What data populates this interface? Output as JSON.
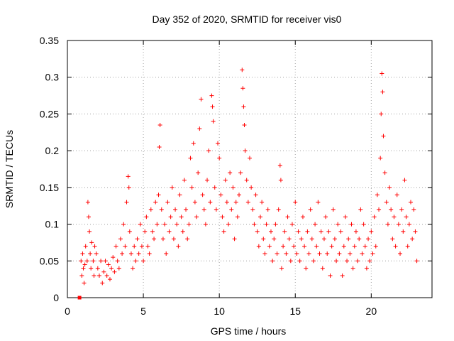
{
  "chart_data": {
    "type": "scatter",
    "title": "Day 352 of 2020, SRMTID for receiver vis0",
    "xlabel": "GPS time / hours",
    "ylabel": "SRMTID / TECUs",
    "xlim": [
      0,
      24
    ],
    "ylim": [
      0,
      0.35
    ],
    "xticks": [
      0,
      5,
      10,
      15,
      20
    ],
    "yticks": [
      0,
      0.05,
      0.1,
      0.15,
      0.2,
      0.25,
      0.3,
      0.35
    ],
    "ytick_labels": [
      "0",
      "0.05",
      "0.1",
      "0.15",
      "0.2",
      "0.25",
      "0.3",
      "0.35"
    ],
    "grid": true,
    "marker": "plus",
    "color": "#ff0000",
    "extra_marker": {
      "x": 0.8,
      "y": 0.0,
      "shape": "square"
    },
    "series": [
      {
        "name": "SRMTID",
        "points": [
          [
            0.9,
            0.05
          ],
          [
            0.95,
            0.03
          ],
          [
            1.0,
            0.06
          ],
          [
            1.05,
            0.04
          ],
          [
            1.1,
            0.02
          ],
          [
            1.15,
            0.045
          ],
          [
            1.2,
            0.07
          ],
          [
            1.3,
            0.05
          ],
          [
            1.35,
            0.13
          ],
          [
            1.4,
            0.11
          ],
          [
            1.45,
            0.09
          ],
          [
            1.5,
            0.06
          ],
          [
            1.55,
            0.04
          ],
          [
            1.6,
            0.075
          ],
          [
            1.7,
            0.05
          ],
          [
            1.75,
            0.03
          ],
          [
            1.8,
            0.07
          ],
          [
            1.9,
            0.06
          ],
          [
            2.0,
            0.04
          ],
          [
            2.1,
            0.03
          ],
          [
            2.2,
            0.05
          ],
          [
            2.3,
            0.02
          ],
          [
            2.4,
            0.035
          ],
          [
            2.5,
            0.05
          ],
          [
            2.6,
            0.03
          ],
          [
            2.7,
            0.045
          ],
          [
            2.8,
            0.025
          ],
          [
            2.9,
            0.04
          ],
          [
            3.0,
            0.055
          ],
          [
            3.1,
            0.035
          ],
          [
            3.2,
            0.07
          ],
          [
            3.3,
            0.05
          ],
          [
            3.4,
            0.04
          ],
          [
            3.5,
            0.08
          ],
          [
            3.6,
            0.06
          ],
          [
            3.7,
            0.1
          ],
          [
            3.8,
            0.07
          ],
          [
            3.9,
            0.13
          ],
          [
            4.0,
            0.165
          ],
          [
            4.05,
            0.15
          ],
          [
            4.1,
            0.09
          ],
          [
            4.2,
            0.06
          ],
          [
            4.3,
            0.04
          ],
          [
            4.4,
            0.07
          ],
          [
            4.5,
            0.05
          ],
          [
            4.6,
            0.08
          ],
          [
            4.7,
            0.06
          ],
          [
            4.8,
            0.1
          ],
          [
            4.9,
            0.07
          ],
          [
            5.0,
            0.05
          ],
          [
            5.1,
            0.09
          ],
          [
            5.2,
            0.11
          ],
          [
            5.3,
            0.07
          ],
          [
            5.4,
            0.06
          ],
          [
            5.5,
            0.12
          ],
          [
            5.6,
            0.09
          ],
          [
            5.7,
            0.08
          ],
          [
            5.8,
            0.13
          ],
          [
            5.9,
            0.1
          ],
          [
            6.0,
            0.14
          ],
          [
            6.05,
            0.205
          ],
          [
            6.1,
            0.235
          ],
          [
            6.2,
            0.12
          ],
          [
            6.3,
            0.08
          ],
          [
            6.4,
            0.1
          ],
          [
            6.5,
            0.06
          ],
          [
            6.6,
            0.13
          ],
          [
            6.7,
            0.09
          ],
          [
            6.8,
            0.11
          ],
          [
            6.9,
            0.15
          ],
          [
            7.0,
            0.08
          ],
          [
            7.1,
            0.12
          ],
          [
            7.2,
            0.1
          ],
          [
            7.3,
            0.07
          ],
          [
            7.4,
            0.14
          ],
          [
            7.5,
            0.11
          ],
          [
            7.6,
            0.09
          ],
          [
            7.7,
            0.16
          ],
          [
            7.8,
            0.12
          ],
          [
            7.9,
            0.08
          ],
          [
            8.0,
            0.1
          ],
          [
            8.1,
            0.19
          ],
          [
            8.2,
            0.15
          ],
          [
            8.3,
            0.21
          ],
          [
            8.4,
            0.13
          ],
          [
            8.5,
            0.11
          ],
          [
            8.6,
            0.17
          ],
          [
            8.7,
            0.23
          ],
          [
            8.8,
            0.27
          ],
          [
            8.9,
            0.14
          ],
          [
            9.0,
            0.12
          ],
          [
            9.1,
            0.1
          ],
          [
            9.2,
            0.16
          ],
          [
            9.3,
            0.2
          ],
          [
            9.4,
            0.13
          ],
          [
            9.5,
            0.275
          ],
          [
            9.55,
            0.26
          ],
          [
            9.6,
            0.24
          ],
          [
            9.7,
            0.15
          ],
          [
            9.8,
            0.12
          ],
          [
            9.9,
            0.21
          ],
          [
            10.0,
            0.19
          ],
          [
            10.1,
            0.14
          ],
          [
            10.2,
            0.11
          ],
          [
            10.3,
            0.09
          ],
          [
            10.4,
            0.16
          ],
          [
            10.5,
            0.13
          ],
          [
            10.6,
            0.1
          ],
          [
            10.7,
            0.17
          ],
          [
            10.8,
            0.12
          ],
          [
            10.9,
            0.15
          ],
          [
            11.0,
            0.08
          ],
          [
            11.1,
            0.13
          ],
          [
            11.2,
            0.11
          ],
          [
            11.3,
            0.14
          ],
          [
            11.4,
            0.17
          ],
          [
            11.5,
            0.31
          ],
          [
            11.55,
            0.285
          ],
          [
            11.6,
            0.26
          ],
          [
            11.65,
            0.235
          ],
          [
            11.7,
            0.2
          ],
          [
            11.8,
            0.16
          ],
          [
            11.9,
            0.13
          ],
          [
            12.0,
            0.19
          ],
          [
            12.1,
            0.15
          ],
          [
            12.2,
            0.12
          ],
          [
            12.3,
            0.1
          ],
          [
            12.4,
            0.14
          ],
          [
            12.5,
            0.09
          ],
          [
            12.6,
            0.07
          ],
          [
            12.7,
            0.11
          ],
          [
            12.8,
            0.13
          ],
          [
            12.9,
            0.08
          ],
          [
            13.0,
            0.06
          ],
          [
            13.1,
            0.1
          ],
          [
            13.2,
            0.12
          ],
          [
            13.3,
            0.07
          ],
          [
            13.4,
            0.09
          ],
          [
            13.5,
            0.05
          ],
          [
            13.6,
            0.08
          ],
          [
            13.7,
            0.1
          ],
          [
            13.8,
            0.06
          ],
          [
            13.9,
            0.12
          ],
          [
            14.0,
            0.18
          ],
          [
            14.05,
            0.16
          ],
          [
            14.1,
            0.04
          ],
          [
            14.2,
            0.07
          ],
          [
            14.3,
            0.09
          ],
          [
            14.4,
            0.06
          ],
          [
            14.5,
            0.11
          ],
          [
            14.6,
            0.08
          ],
          [
            14.7,
            0.05
          ],
          [
            14.8,
            0.1
          ],
          [
            14.9,
            0.07
          ],
          [
            15.0,
            0.13
          ],
          [
            15.1,
            0.06
          ],
          [
            15.2,
            0.09
          ],
          [
            15.3,
            0.05
          ],
          [
            15.4,
            0.08
          ],
          [
            15.5,
            0.11
          ],
          [
            15.6,
            0.07
          ],
          [
            15.7,
            0.04
          ],
          [
            15.8,
            0.09
          ],
          [
            15.9,
            0.06
          ],
          [
            16.0,
            0.12
          ],
          [
            16.1,
            0.08
          ],
          [
            16.2,
            0.05
          ],
          [
            16.3,
            0.1
          ],
          [
            16.4,
            0.07
          ],
          [
            16.5,
            0.13
          ],
          [
            16.6,
            0.06
          ],
          [
            16.7,
            0.09
          ],
          [
            16.8,
            0.04
          ],
          [
            16.9,
            0.08
          ],
          [
            17.0,
            0.11
          ],
          [
            17.1,
            0.06
          ],
          [
            17.2,
            0.09
          ],
          [
            17.3,
            0.03
          ],
          [
            17.4,
            0.07
          ],
          [
            17.5,
            0.12
          ],
          [
            17.6,
            0.08
          ],
          [
            17.7,
            0.05
          ],
          [
            17.8,
            0.1
          ],
          [
            17.9,
            0.06
          ],
          [
            18.0,
            0.09
          ],
          [
            18.1,
            0.03
          ],
          [
            18.2,
            0.07
          ],
          [
            18.3,
            0.11
          ],
          [
            18.4,
            0.05
          ],
          [
            18.5,
            0.08
          ],
          [
            18.6,
            0.06
          ],
          [
            18.7,
            0.1
          ],
          [
            18.8,
            0.04
          ],
          [
            18.9,
            0.07
          ],
          [
            19.0,
            0.09
          ],
          [
            19.1,
            0.05
          ],
          [
            19.2,
            0.08
          ],
          [
            19.3,
            0.12
          ],
          [
            19.4,
            0.06
          ],
          [
            19.5,
            0.1
          ],
          [
            19.6,
            0.07
          ],
          [
            19.7,
            0.04
          ],
          [
            19.8,
            0.08
          ],
          [
            19.9,
            0.05
          ],
          [
            20.0,
            0.09
          ],
          [
            20.1,
            0.06
          ],
          [
            20.2,
            0.11
          ],
          [
            20.3,
            0.07
          ],
          [
            20.4,
            0.14
          ],
          [
            20.5,
            0.12
          ],
          [
            20.6,
            0.19
          ],
          [
            20.65,
            0.25
          ],
          [
            20.7,
            0.305
          ],
          [
            20.75,
            0.28
          ],
          [
            20.8,
            0.22
          ],
          [
            20.9,
            0.17
          ],
          [
            21.0,
            0.13
          ],
          [
            21.1,
            0.1
          ],
          [
            21.2,
            0.15
          ],
          [
            21.3,
            0.12
          ],
          [
            21.4,
            0.08
          ],
          [
            21.5,
            0.11
          ],
          [
            21.6,
            0.07
          ],
          [
            21.7,
            0.14
          ],
          [
            21.8,
            0.1
          ],
          [
            21.9,
            0.06
          ],
          [
            22.0,
            0.12
          ],
          [
            22.1,
            0.09
          ],
          [
            22.2,
            0.16
          ],
          [
            22.3,
            0.11
          ],
          [
            22.4,
            0.07
          ],
          [
            22.5,
            0.1
          ],
          [
            22.6,
            0.13
          ],
          [
            22.7,
            0.08
          ],
          [
            22.8,
            0.12
          ],
          [
            22.9,
            0.09
          ],
          [
            23.0,
            0.05
          ]
        ]
      }
    ]
  }
}
